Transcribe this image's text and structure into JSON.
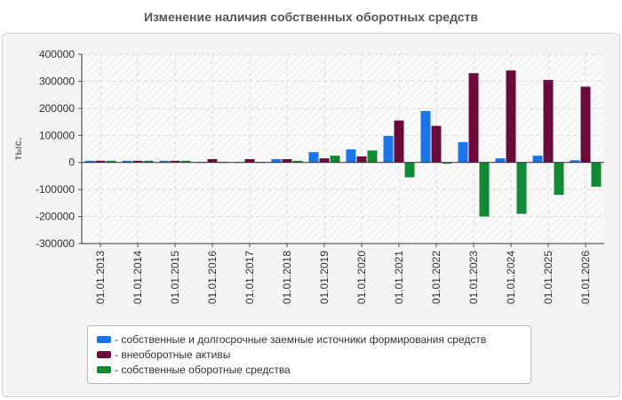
{
  "chart_data": {
    "type": "bar",
    "title": "Изменение наличия собственных оборотных средств",
    "ylabel": "тыс.",
    "xlabel": "",
    "ylim": [
      -300000,
      400000
    ],
    "yticks": [
      400000,
      300000,
      200000,
      100000,
      0,
      -100000,
      -200000,
      -300000
    ],
    "grid": true,
    "legend_position": "bottom",
    "categories": [
      "01.01.2013",
      "01.01.2014",
      "01.01.2015",
      "01.01.2016",
      "01.01.2017",
      "01.01.2018",
      "01.01.2019",
      "01.01.2020",
      "01.01.2021",
      "01.01.2022",
      "01.01.2023",
      "01.01.2024",
      "01.01.2025",
      "01.01.2026"
    ],
    "series": [
      {
        "name": "собственные и долгосрочные заемные источники формирования средств",
        "legend_label": "- собственные и долгосрочные заемные источники формирования средств",
        "color": "#1a75e8",
        "values": [
          6000,
          6000,
          6000,
          2000,
          2000,
          12000,
          38000,
          48000,
          98000,
          190000,
          75000,
          15000,
          25000,
          8000
        ]
      },
      {
        "name": "внеоборотные активы",
        "legend_label": "- внеоборотные активы",
        "color": "#6b0a3c",
        "values": [
          6000,
          6000,
          6000,
          12000,
          12000,
          12000,
          15000,
          22000,
          155000,
          135000,
          330000,
          340000,
          305000,
          280000
        ]
      },
      {
        "name": "собственные оборотные средства",
        "legend_label": "- собственные оборотные средства",
        "color": "#118a34",
        "values": [
          6000,
          6000,
          6000,
          2000,
          2000,
          6000,
          25000,
          44000,
          -55000,
          -5000,
          -200000,
          -190000,
          -120000,
          -90000
        ]
      }
    ]
  }
}
